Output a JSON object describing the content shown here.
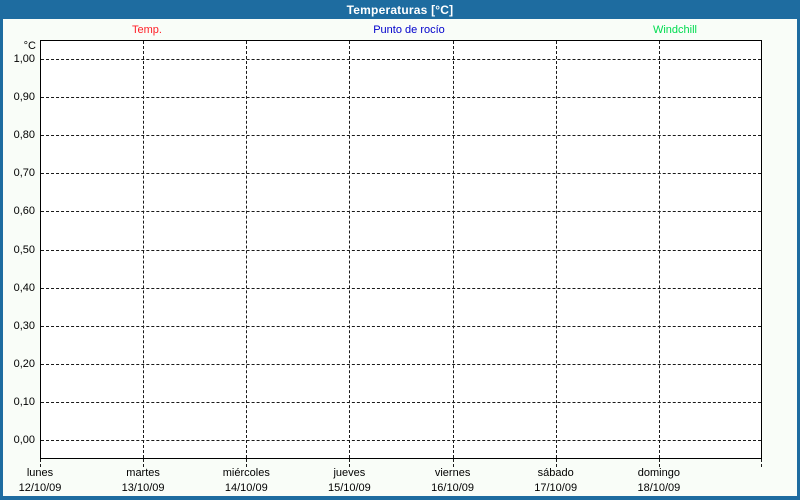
{
  "header": {
    "title": "Temperaturas [°C]"
  },
  "legend": {
    "items": [
      {
        "label": "Temp.",
        "color": "#ff2028"
      },
      {
        "label": "Punto de rocío",
        "color": "#0000cc"
      },
      {
        "label": "Windchill",
        "color": "#00dc50"
      }
    ]
  },
  "y_axis": {
    "unit": "°C",
    "ticks": [
      "1,00",
      "0,90",
      "0,80",
      "0,70",
      "0,60",
      "0,50",
      "0,40",
      "0,30",
      "0,20",
      "0,10",
      "0,00"
    ]
  },
  "x_axis": {
    "days": [
      {
        "name": "lunes",
        "date": "12/10/09"
      },
      {
        "name": "martes",
        "date": "13/10/09"
      },
      {
        "name": "miércoles",
        "date": "14/10/09"
      },
      {
        "name": "jueves",
        "date": "15/10/09"
      },
      {
        "name": "viernes",
        "date": "16/10/09"
      },
      {
        "name": "sábado",
        "date": "17/10/09"
      },
      {
        "name": "domingo",
        "date": "18/10/09"
      }
    ]
  },
  "colors": {
    "frame": "#1e6ca0",
    "background": "#f9fdf8",
    "plot_background": "#ffffff",
    "grid": "#1a1a1a",
    "title_text": "#ffffff"
  },
  "chart_data": {
    "type": "line",
    "title": "Temperaturas [°C]",
    "x": [
      "12/10/09",
      "13/10/09",
      "14/10/09",
      "15/10/09",
      "16/10/09",
      "17/10/09",
      "18/10/09"
    ],
    "x_day_names": [
      "lunes",
      "martes",
      "miércoles",
      "jueves",
      "viernes",
      "sábado",
      "domingo"
    ],
    "series": [
      {
        "name": "Temp.",
        "color": "#ff2028",
        "values": []
      },
      {
        "name": "Punto de rocío",
        "color": "#0000cc",
        "values": []
      },
      {
        "name": "Windchill",
        "color": "#00dc50",
        "values": []
      }
    ],
    "ylabel": "°C",
    "ylim": [
      0,
      1
    ],
    "y_tick_step": 0.1,
    "grid": "dashed",
    "legend_position": "top",
    "note": "chart area is empty — no data points plotted for any series"
  }
}
